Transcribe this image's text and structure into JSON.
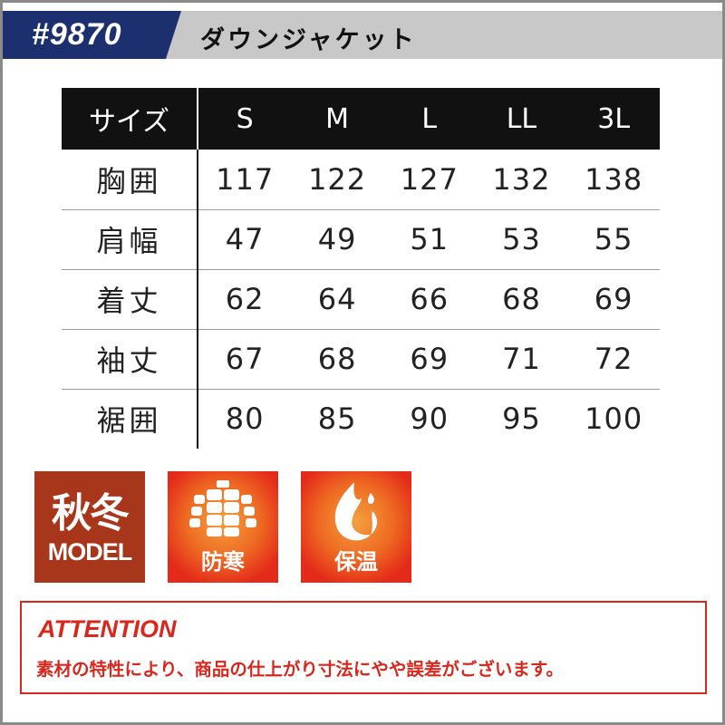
{
  "header": {
    "code": "#9870",
    "title": "ダウンジャケット"
  },
  "table": {
    "columns": [
      "サイズ",
      "S",
      "M",
      "L",
      "LL",
      "3L"
    ],
    "rows": [
      [
        "胸囲",
        "117",
        "122",
        "127",
        "132",
        "138"
      ],
      [
        "肩幅",
        "47",
        "49",
        "51",
        "53",
        "55"
      ],
      [
        "着丈",
        "62",
        "64",
        "66",
        "68",
        "69"
      ],
      [
        "袖丈",
        "67",
        "68",
        "69",
        "71",
        "72"
      ],
      [
        "裾囲",
        "80",
        "85",
        "90",
        "95",
        "100"
      ]
    ]
  },
  "badges": [
    {
      "title": "秋冬",
      "sub": "MODEL",
      "color": "#a8361a"
    },
    {
      "icon": "down-jacket-icon",
      "label": "防寒",
      "color": "#e42a1a"
    },
    {
      "icon": "flame-icon",
      "label": "保温",
      "color": "#e42a1a"
    }
  ],
  "attention": {
    "title": "ATTENTION",
    "text": "素材の特性により、商品の仕上がり寸法にやや誤差がございます。",
    "color": "#d8281e"
  },
  "colors": {
    "navy": "#1c2f6e",
    "header_gray": "#c8c8c8"
  }
}
